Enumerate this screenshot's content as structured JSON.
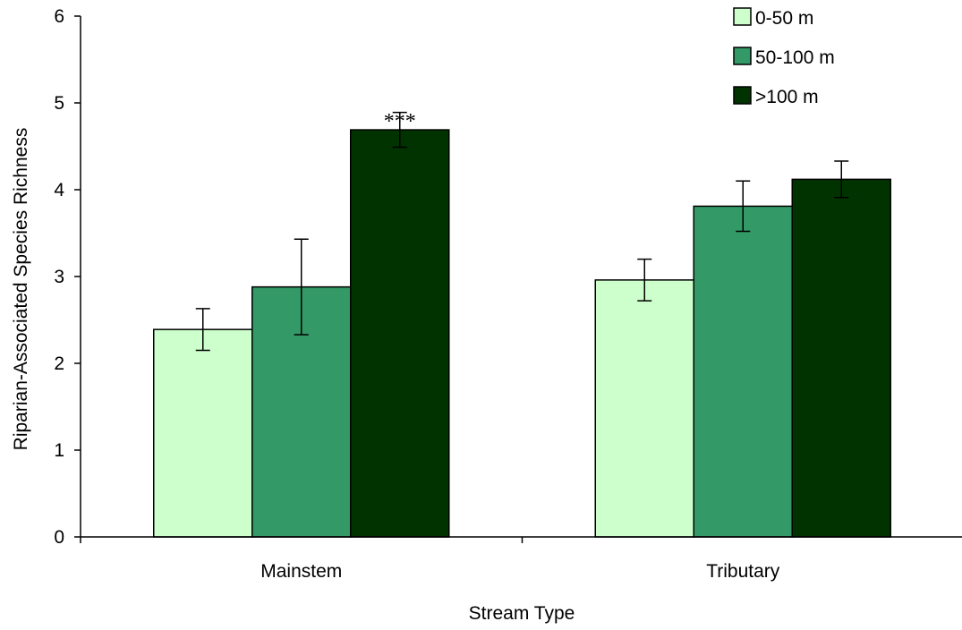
{
  "chart_data": {
    "type": "bar",
    "title": "",
    "xlabel": "Stream Type",
    "ylabel": "Riparian-Associated Species Richness",
    "ylim": [
      0,
      6
    ],
    "yticks": [
      "0",
      "1",
      "2",
      "3",
      "4",
      "5",
      "6"
    ],
    "categories": [
      "Mainstem",
      "Tributary"
    ],
    "series": [
      {
        "name": "0-50 m",
        "color": "#ccffcc",
        "values": [
          2.39,
          2.96
        ],
        "errors": [
          0.24,
          0.24
        ]
      },
      {
        "name": "50-100 m",
        "color": "#339966",
        "values": [
          2.88,
          3.81
        ],
        "errors": [
          0.55,
          0.29
        ]
      },
      {
        "name": ">100 m",
        "color": "#003300",
        "values": [
          4.69,
          4.12
        ],
        "errors": [
          0.2,
          0.21
        ]
      }
    ],
    "annotations": [
      {
        "text": "***",
        "category": "Mainstem",
        "series": ">100 m"
      }
    ],
    "legend_position": "top-right",
    "grid": false
  }
}
